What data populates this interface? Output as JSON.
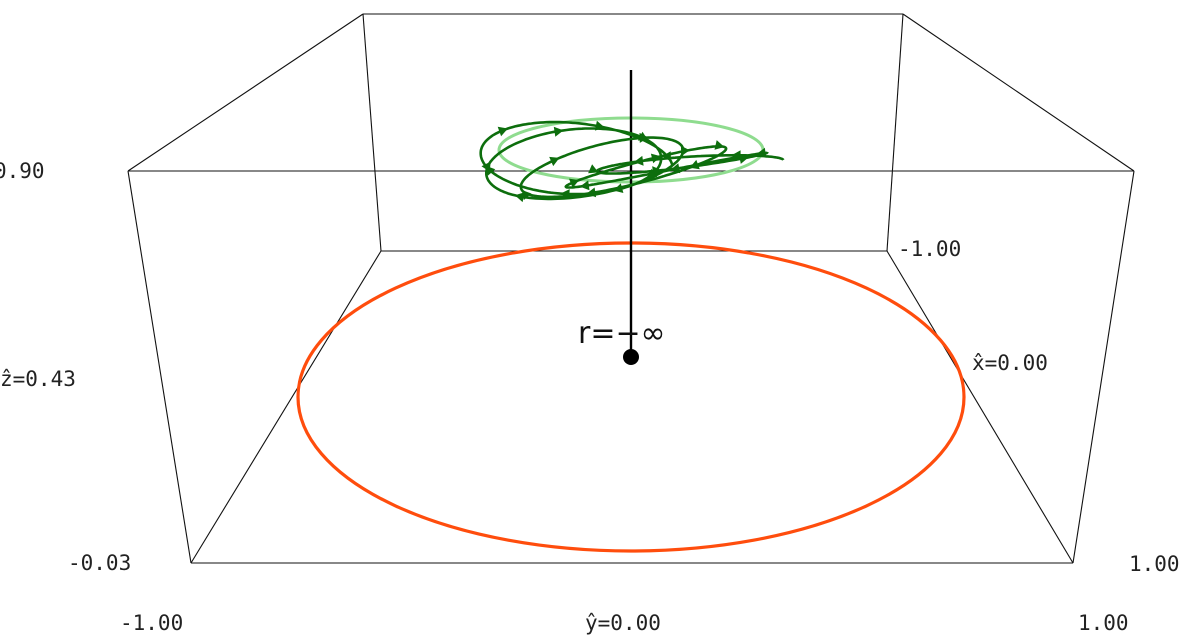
{
  "chart_data": {
    "type": "3d-trajectory",
    "axes": {
      "x": {
        "label": "x̂=0.00",
        "ticks": [
          "-1.00",
          "1.00"
        ]
      },
      "y": {
        "label": "ŷ=0.00",
        "ticks": [
          "-1.00",
          "1.00"
        ]
      },
      "z": {
        "label": "ẑ=0.43",
        "ticks": [
          "-0.03",
          "0.90"
        ]
      }
    },
    "radius_label": "r=−∞",
    "series": [
      {
        "role": "unit-circle",
        "color": "#ff4d0d"
      },
      {
        "role": "orbit",
        "color": "#0d6e0d",
        "turns": 5
      },
      {
        "role": "reference-ring",
        "color": "#8fdc8f"
      }
    ],
    "colors": {
      "box": "#111111",
      "axis": "#000000",
      "origin": "#000000"
    }
  }
}
